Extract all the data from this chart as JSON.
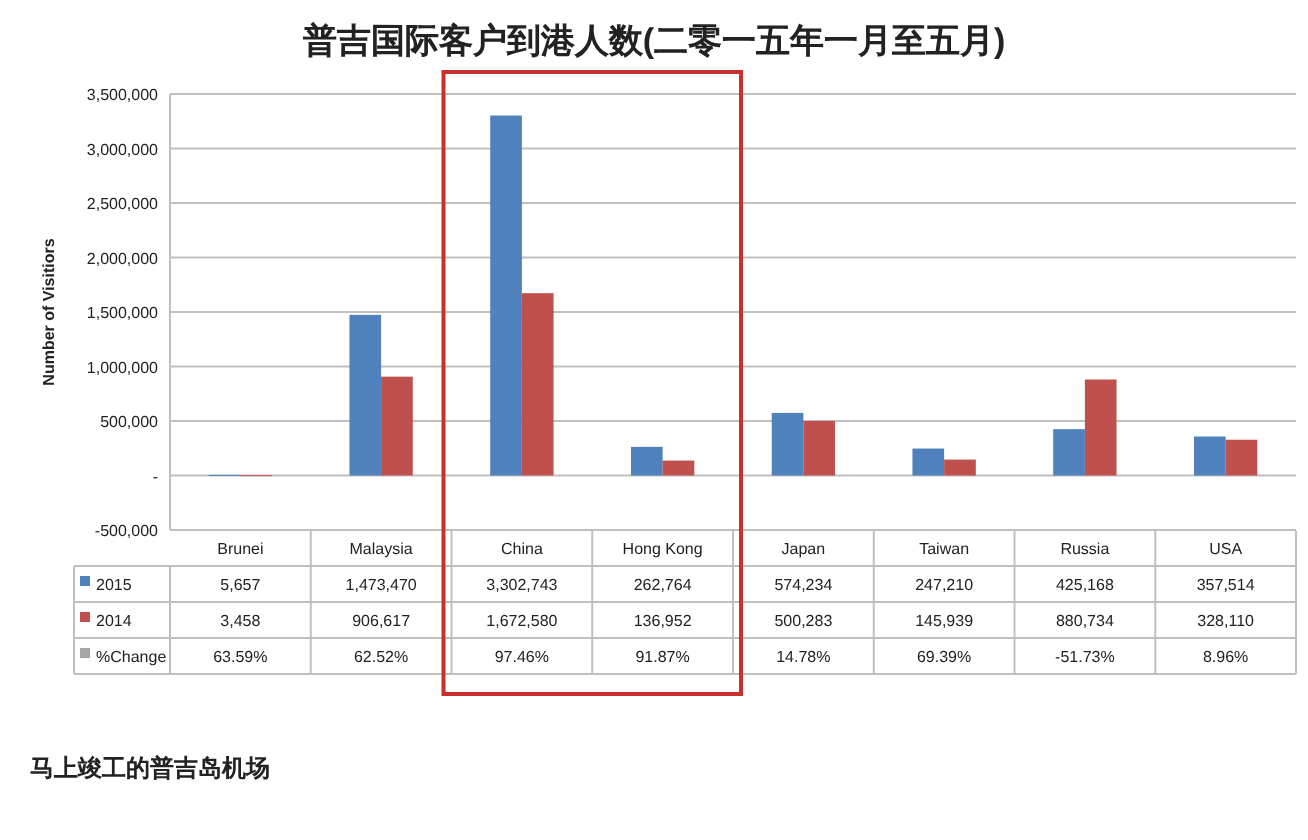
{
  "chart_data": {
    "type": "bar",
    "title": "普吉国际客户到港人数(二零一五年一月至五月)",
    "ylabel": "Number of Visitiors",
    "categories": [
      "Brunei",
      "Malaysia",
      "China",
      "Hong Kong",
      "Japan",
      "Taiwan",
      "Russia",
      "USA"
    ],
    "series": [
      {
        "name": "2015",
        "color": "#4f81bd",
        "values": [
          5657,
          1473470,
          3302743,
          262764,
          574234,
          247210,
          425168,
          357514
        ],
        "value_labels": [
          "5,657",
          "1,473,470",
          "3,302,743",
          "262,764",
          "574,234",
          "247,210",
          "425,168",
          "357,514"
        ]
      },
      {
        "name": "2014",
        "color": "#c0504d",
        "values": [
          3458,
          906617,
          1672580,
          136952,
          500283,
          145939,
          880734,
          328110
        ],
        "value_labels": [
          "3,458",
          "906,617",
          "1,672,580",
          "136,952",
          "500,283",
          "145,939",
          "880,734",
          "328,110"
        ]
      },
      {
        "name": "%Change",
        "color": "#a6a6a6",
        "values": [
          null,
          null,
          null,
          null,
          null,
          null,
          null,
          null
        ],
        "value_labels": [
          "63.59%",
          "62.52%",
          "97.46%",
          "91.87%",
          "14.78%",
          "69.39%",
          "-51.73%",
          "8.96%"
        ]
      }
    ],
    "ylim": [
      -500000,
      3500000
    ],
    "yticks": [
      {
        "value": -500000,
        "label": "-500,000"
      },
      {
        "value": 0,
        "label": "-"
      },
      {
        "value": 500000,
        "label": "500,000"
      },
      {
        "value": 1000000,
        "label": "1,000,000"
      },
      {
        "value": 1500000,
        "label": "1,500,000"
      },
      {
        "value": 2000000,
        "label": "2,000,000"
      },
      {
        "value": 2500000,
        "label": "2,500,000"
      },
      {
        "value": 3000000,
        "label": "3,000,000"
      },
      {
        "value": 3500000,
        "label": "3,500,000"
      }
    ],
    "grid": "y",
    "legend": "bottom left",
    "annotations": [
      "马上竣工的普吉岛机场"
    ]
  }
}
